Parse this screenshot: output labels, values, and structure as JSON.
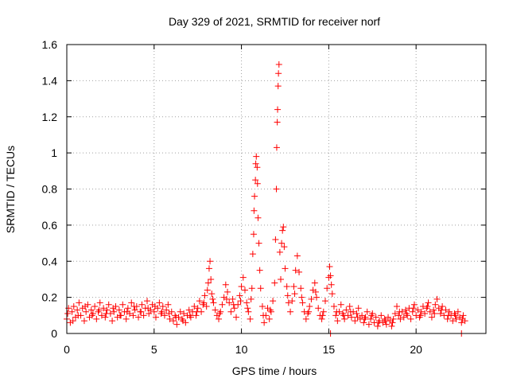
{
  "chart_data": {
    "type": "scatter",
    "title": "Day 329 of 2021, SRMTID for receiver norf",
    "xlabel": "GPS time / hours",
    "ylabel": "SRMTID / TECUs",
    "xlim": [
      0,
      24
    ],
    "ylim": [
      0,
      1.6
    ],
    "xticks": [
      0,
      5,
      10,
      15,
      20
    ],
    "yticks": [
      0,
      0.2,
      0.4,
      0.6,
      0.8,
      1,
      1.2,
      1.4,
      1.6
    ],
    "xtick_labels": [
      "0",
      "5",
      "10",
      "15",
      "20"
    ],
    "ytick_labels": [
      "0",
      "0.2",
      "0.4",
      "0.6",
      "0.8",
      "1",
      "1.2",
      "1.4",
      "1.6"
    ],
    "grid": true,
    "marker": "+",
    "color": "#ff0000",
    "series": [
      {
        "name": "SRMTID",
        "points": [
          [
            0.0,
            0.08
          ],
          [
            0.1,
            0.14
          ],
          [
            0.2,
            0.06
          ],
          [
            0.3,
            0.12
          ],
          [
            0.4,
            0.15
          ],
          [
            0.5,
            0.09
          ],
          [
            0.6,
            0.13
          ],
          [
            0.7,
            0.17
          ],
          [
            0.8,
            0.1
          ],
          [
            0.9,
            0.14
          ],
          [
            1.0,
            0.07
          ],
          [
            1.1,
            0.12
          ],
          [
            1.2,
            0.16
          ],
          [
            1.3,
            0.09
          ],
          [
            1.4,
            0.13
          ],
          [
            1.5,
            0.11
          ],
          [
            1.6,
            0.15
          ],
          [
            1.7,
            0.08
          ],
          [
            1.8,
            0.12
          ],
          [
            1.9,
            0.17
          ],
          [
            2.0,
            0.1
          ],
          [
            2.1,
            0.14
          ],
          [
            2.2,
            0.09
          ],
          [
            2.3,
            0.13
          ],
          [
            2.4,
            0.16
          ],
          [
            2.5,
            0.11
          ],
          [
            2.6,
            0.07
          ],
          [
            2.7,
            0.12
          ],
          [
            2.8,
            0.15
          ],
          [
            2.9,
            0.09
          ],
          [
            3.0,
            0.13
          ],
          [
            3.1,
            0.1
          ],
          [
            3.2,
            0.16
          ],
          [
            3.3,
            0.12
          ],
          [
            3.4,
            0.08
          ],
          [
            3.5,
            0.14
          ],
          [
            3.6,
            0.11
          ],
          [
            3.7,
            0.17
          ],
          [
            3.8,
            0.1
          ],
          [
            3.9,
            0.13
          ],
          [
            4.0,
            0.15
          ],
          [
            4.1,
            0.09
          ],
          [
            4.2,
            0.12
          ],
          [
            4.3,
            0.16
          ],
          [
            4.4,
            0.1
          ],
          [
            4.5,
            0.14
          ],
          [
            4.6,
            0.18
          ],
          [
            4.7,
            0.11
          ],
          [
            4.8,
            0.13
          ],
          [
            4.9,
            0.16
          ],
          [
            5.0,
            0.12
          ],
          [
            5.1,
            0.09
          ],
          [
            5.2,
            0.14
          ],
          [
            5.3,
            0.17
          ],
          [
            5.4,
            0.11
          ],
          [
            5.5,
            0.15
          ],
          [
            5.6,
            0.1
          ],
          [
            5.7,
            0.13
          ],
          [
            5.8,
            0.16
          ],
          [
            5.9,
            0.08
          ],
          [
            6.0,
            0.12
          ],
          [
            6.1,
            0.07
          ],
          [
            6.2,
            0.1
          ],
          [
            6.3,
            0.05
          ],
          [
            6.4,
            0.09
          ],
          [
            6.5,
            0.12
          ],
          [
            6.6,
            0.08
          ],
          [
            6.7,
            0.11
          ],
          [
            6.8,
            0.06
          ],
          [
            6.9,
            0.1
          ],
          [
            7.0,
            0.13
          ],
          [
            7.1,
            0.09
          ],
          [
            7.2,
            0.12
          ],
          [
            7.3,
            0.15
          ],
          [
            7.4,
            0.1
          ],
          [
            7.5,
            0.14
          ],
          [
            7.6,
            0.18
          ],
          [
            7.7,
            0.12
          ],
          [
            7.8,
            0.16
          ],
          [
            7.9,
            0.21
          ],
          [
            8.0,
            0.15
          ],
          [
            8.05,
            0.24
          ],
          [
            8.1,
            0.28
          ],
          [
            8.15,
            0.36
          ],
          [
            8.2,
            0.4
          ],
          [
            8.25,
            0.3
          ],
          [
            8.3,
            0.22
          ],
          [
            8.4,
            0.17
          ],
          [
            8.5,
            0.13
          ],
          [
            8.6,
            0.1
          ],
          [
            8.7,
            0.08
          ],
          [
            8.8,
            0.12
          ],
          [
            8.9,
            0.16
          ],
          [
            9.0,
            0.2
          ],
          [
            9.1,
            0.27
          ],
          [
            9.2,
            0.23
          ],
          [
            9.3,
            0.17
          ],
          [
            9.4,
            0.12
          ],
          [
            9.5,
            0.19
          ],
          [
            9.6,
            0.14
          ],
          [
            9.7,
            0.09
          ],
          [
            9.8,
            0.16
          ],
          [
            9.9,
            0.21
          ],
          [
            10.0,
            0.26
          ],
          [
            10.1,
            0.31
          ],
          [
            10.2,
            0.24
          ],
          [
            10.3,
            0.17
          ],
          [
            10.4,
            0.12
          ],
          [
            10.5,
            0.08
          ],
          [
            10.6,
            0.25
          ],
          [
            10.65,
            0.44
          ],
          [
            10.7,
            0.55
          ],
          [
            10.72,
            0.68
          ],
          [
            10.75,
            0.76
          ],
          [
            10.8,
            0.85
          ],
          [
            10.82,
            0.94
          ],
          [
            10.85,
            0.98
          ],
          [
            10.9,
            0.92
          ],
          [
            10.92,
            0.83
          ],
          [
            10.95,
            0.64
          ],
          [
            11.0,
            0.5
          ],
          [
            11.05,
            0.35
          ],
          [
            11.1,
            0.25
          ],
          [
            11.2,
            0.15
          ],
          [
            11.3,
            0.06
          ],
          [
            11.4,
            0.1
          ],
          [
            11.5,
            0.14
          ],
          [
            11.6,
            0.08
          ],
          [
            11.7,
            0.12
          ],
          [
            11.8,
            0.18
          ],
          [
            11.9,
            0.28
          ],
          [
            11.95,
            0.52
          ],
          [
            12.0,
            0.8
          ],
          [
            12.02,
            1.03
          ],
          [
            12.05,
            1.17
          ],
          [
            12.07,
            1.24
          ],
          [
            12.1,
            1.37
          ],
          [
            12.12,
            1.44
          ],
          [
            12.15,
            1.49
          ],
          [
            12.2,
            0.45
          ],
          [
            12.25,
            0.3
          ],
          [
            12.3,
            0.5
          ],
          [
            12.35,
            0.57
          ],
          [
            12.4,
            0.59
          ],
          [
            12.45,
            0.48
          ],
          [
            12.5,
            0.36
          ],
          [
            12.6,
            0.26
          ],
          [
            12.7,
            0.17
          ],
          [
            12.8,
            0.12
          ],
          [
            12.9,
            0.18
          ],
          [
            13.0,
            0.26
          ],
          [
            13.1,
            0.35
          ],
          [
            13.2,
            0.43
          ],
          [
            13.3,
            0.34
          ],
          [
            13.4,
            0.25
          ],
          [
            13.5,
            0.17
          ],
          [
            13.6,
            0.12
          ],
          [
            13.7,
            0.08
          ],
          [
            13.8,
            0.11
          ],
          [
            13.9,
            0.15
          ],
          [
            14.0,
            0.19
          ],
          [
            14.1,
            0.24
          ],
          [
            14.2,
            0.28
          ],
          [
            14.3,
            0.2
          ],
          [
            14.4,
            0.14
          ],
          [
            14.5,
            0.1
          ],
          [
            14.6,
            0.08
          ],
          [
            14.7,
            0.12
          ],
          [
            14.8,
            0.18
          ],
          [
            14.9,
            0.25
          ],
          [
            15.0,
            0.31
          ],
          [
            15.05,
            0.37
          ],
          [
            15.1,
            0.32
          ],
          [
            15.2,
            0.22
          ],
          [
            15.3,
            0.15
          ],
          [
            15.4,
            0.1
          ],
          [
            15.5,
            0.07
          ],
          [
            15.6,
            0.12
          ],
          [
            15.7,
            0.16
          ],
          [
            15.8,
            0.11
          ],
          [
            15.9,
            0.08
          ],
          [
            16.0,
            0.13
          ],
          [
            16.1,
            0.1
          ],
          [
            16.2,
            0.15
          ],
          [
            16.3,
            0.09
          ],
          [
            16.4,
            0.12
          ],
          [
            16.5,
            0.07
          ],
          [
            16.6,
            0.11
          ],
          [
            16.7,
            0.14
          ],
          [
            16.8,
            0.08
          ],
          [
            16.9,
            0.1
          ],
          [
            17.0,
            0.06
          ],
          [
            17.1,
            0.09
          ],
          [
            17.2,
            0.12
          ],
          [
            17.3,
            0.05
          ],
          [
            17.4,
            0.08
          ],
          [
            17.5,
            0.11
          ],
          [
            17.6,
            0.06
          ],
          [
            17.7,
            0.09
          ],
          [
            17.8,
            0.04
          ],
          [
            17.9,
            0.07
          ],
          [
            18.0,
            0.1
          ],
          [
            18.1,
            0.06
          ],
          [
            18.2,
            0.08
          ],
          [
            18.3,
            0.05
          ],
          [
            18.4,
            0.09
          ],
          [
            18.5,
            0.07
          ],
          [
            18.6,
            0.04
          ],
          [
            18.7,
            0.08
          ],
          [
            18.8,
            0.11
          ],
          [
            18.9,
            0.15
          ],
          [
            19.0,
            0.1
          ],
          [
            19.1,
            0.08
          ],
          [
            19.2,
            0.12
          ],
          [
            19.3,
            0.09
          ],
          [
            19.4,
            0.13
          ],
          [
            19.5,
            0.1
          ],
          [
            19.6,
            0.14
          ],
          [
            19.7,
            0.08
          ],
          [
            19.8,
            0.12
          ],
          [
            19.9,
            0.16
          ],
          [
            20.0,
            0.1
          ],
          [
            20.1,
            0.13
          ],
          [
            20.2,
            0.09
          ],
          [
            20.3,
            0.12
          ],
          [
            20.4,
            0.15
          ],
          [
            20.5,
            0.11
          ],
          [
            20.6,
            0.14
          ],
          [
            20.7,
            0.17
          ],
          [
            20.8,
            0.12
          ],
          [
            20.9,
            0.09
          ],
          [
            21.0,
            0.13
          ],
          [
            21.1,
            0.16
          ],
          [
            21.2,
            0.19
          ],
          [
            21.3,
            0.14
          ],
          [
            21.4,
            0.11
          ],
          [
            21.5,
            0.15
          ],
          [
            21.6,
            0.1
          ],
          [
            21.7,
            0.13
          ],
          [
            21.8,
            0.08
          ],
          [
            21.9,
            0.12
          ],
          [
            22.0,
            0.1
          ],
          [
            22.1,
            0.07
          ],
          [
            22.2,
            0.11
          ],
          [
            22.3,
            0.08
          ],
          [
            22.4,
            0.12
          ],
          [
            22.5,
            0.09
          ],
          [
            22.6,
            0.06
          ],
          [
            22.7,
            0.1
          ],
          [
            22.8,
            0.07
          ],
          [
            0.05,
            0.11
          ],
          [
            0.35,
            0.07
          ],
          [
            0.65,
            0.1
          ],
          [
            1.05,
            0.15
          ],
          [
            1.45,
            0.1
          ],
          [
            1.85,
            0.13
          ],
          [
            2.25,
            0.11
          ],
          [
            2.65,
            0.14
          ],
          [
            3.05,
            0.1
          ],
          [
            3.45,
            0.12
          ],
          [
            3.85,
            0.15
          ],
          [
            4.25,
            0.12
          ],
          [
            4.65,
            0.14
          ],
          [
            5.05,
            0.15
          ],
          [
            5.45,
            0.12
          ],
          [
            5.85,
            0.11
          ],
          [
            6.25,
            0.09
          ],
          [
            6.65,
            0.07
          ],
          [
            7.05,
            0.1
          ],
          [
            7.45,
            0.12
          ],
          [
            7.85,
            0.17
          ],
          [
            8.35,
            0.19
          ],
          [
            8.75,
            0.11
          ],
          [
            9.15,
            0.19
          ],
          [
            9.55,
            0.16
          ],
          [
            9.95,
            0.18
          ],
          [
            10.35,
            0.14
          ],
          [
            10.55,
            0.19
          ],
          [
            11.25,
            0.1
          ],
          [
            11.65,
            0.13
          ],
          [
            12.65,
            0.21
          ],
          [
            13.05,
            0.22
          ],
          [
            13.45,
            0.2
          ],
          [
            13.85,
            0.12
          ],
          [
            14.25,
            0.23
          ],
          [
            14.65,
            0.1
          ],
          [
            15.15,
            0.27
          ],
          [
            15.45,
            0.12
          ],
          [
            15.85,
            0.1
          ],
          [
            16.25,
            0.12
          ],
          [
            16.65,
            0.09
          ],
          [
            17.05,
            0.08
          ],
          [
            17.45,
            0.1
          ],
          [
            17.85,
            0.06
          ],
          [
            18.25,
            0.07
          ],
          [
            18.65,
            0.06
          ],
          [
            19.05,
            0.12
          ],
          [
            19.45,
            0.11
          ],
          [
            19.85,
            0.14
          ],
          [
            20.25,
            0.1
          ],
          [
            20.65,
            0.15
          ],
          [
            21.05,
            0.11
          ],
          [
            21.45,
            0.13
          ],
          [
            21.85,
            0.1
          ],
          [
            22.25,
            0.1
          ],
          [
            22.65,
            0.08
          ],
          [
            15.1,
            0.0
          ],
          [
            22.6,
            0.0
          ]
        ]
      }
    ]
  }
}
